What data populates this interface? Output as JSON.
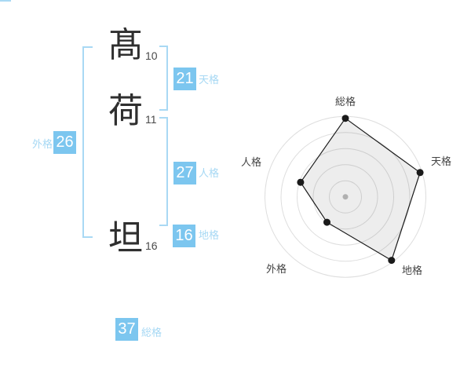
{
  "colors": {
    "box_fill": "#7cc6ef",
    "label_text": "#a6d8f4",
    "bracket": "#a9d9f4"
  },
  "name_display": {
    "characters": [
      {
        "glyph": "髙",
        "strokes": "10"
      },
      {
        "glyph": "荷",
        "strokes": "11"
      },
      {
        "glyph": "坦",
        "strokes": "16"
      }
    ],
    "scores": {
      "tenkaku": {
        "value": "21",
        "label": "天格"
      },
      "jinkaku": {
        "value": "27",
        "label": "人格"
      },
      "chikaku": {
        "value": "16",
        "label": "地格"
      },
      "gaikaku": {
        "value": "26",
        "label": "外格"
      },
      "soukaku": {
        "value": "37",
        "label": "総格"
      }
    }
  },
  "chart_data": {
    "type": "radar",
    "title": "",
    "axes": [
      "総格",
      "天格",
      "地格",
      "外格",
      "人格"
    ],
    "values": [
      5,
      5,
      5,
      2,
      3
    ],
    "max": 5,
    "rings": 5,
    "grid_on": true,
    "legend_position": "none",
    "grid_color": "#dedede",
    "fill_color": "rgba(0,0,0,0.07)",
    "stroke_color": "#1a1a1a",
    "point_color": "#1a1a1a",
    "center_dot_color": "#b0b0b0",
    "label_color": "#444444"
  }
}
